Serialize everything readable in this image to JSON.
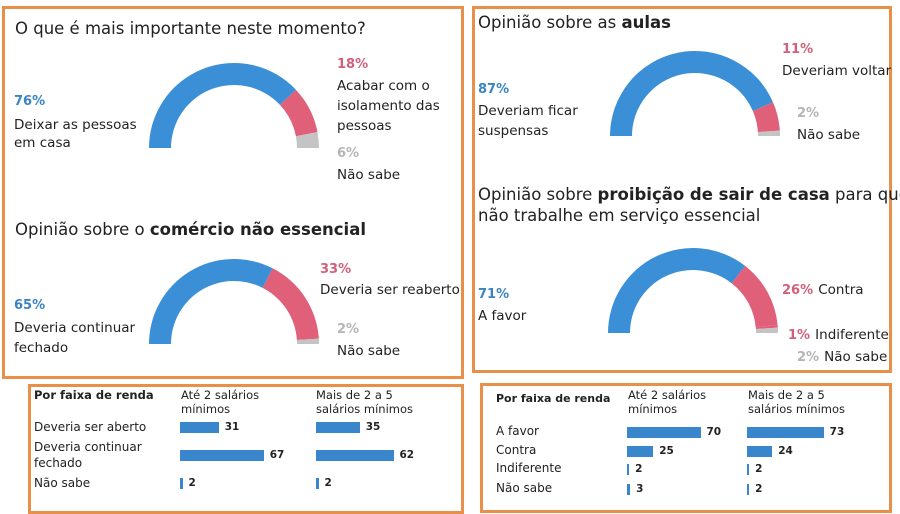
{
  "colors": {
    "blue": "#3a8fd6",
    "red": "#e0607a",
    "grey": "#c4c4c4",
    "blue_text": "#3a84c4",
    "red_text": "#d2607a",
    "grey_text": "#b5b5b5",
    "frame": "#e8904a",
    "bar": "#3a86cc"
  },
  "chart_data": [
    {
      "type": "pie",
      "style": "half-donut",
      "title": "O que é mais importante neste momento?",
      "categories": [
        "Deixar as pessoas em casa",
        "Acabar com o isolamento das pessoas",
        "Não sabe"
      ],
      "values": [
        76,
        18,
        6
      ],
      "labels": [
        {
          "pct": "76%",
          "lines": [
            "Deixar as pessoas",
            "em casa"
          ]
        },
        {
          "pct": "18%",
          "lines": [
            "Acabar com o",
            "isolamento das",
            "pessoas"
          ]
        },
        {
          "pct": "6%",
          "lines": [
            "Não sabe"
          ]
        }
      ]
    },
    {
      "type": "pie",
      "style": "half-donut",
      "title_plain": "Opinião sobre o ",
      "title_bold": "comércio não essencial",
      "categories": [
        "Deveria continuar fechado",
        "Deveria ser reaberto",
        "Não sabe"
      ],
      "values": [
        65,
        33,
        2
      ],
      "labels": [
        {
          "pct": "65%",
          "lines": [
            "Deveria continuar",
            "fechado"
          ]
        },
        {
          "pct": "33%",
          "lines": [
            "Deveria ser reaberto"
          ]
        },
        {
          "pct": "2%",
          "lines": [
            "Não sabe"
          ]
        }
      ]
    },
    {
      "type": "pie",
      "style": "half-donut",
      "title_plain": "Opinião sobre as ",
      "title_bold": "aulas",
      "categories": [
        "Deveriam ficar suspensas",
        "Deveriam voltar",
        "Não sabe"
      ],
      "values": [
        87,
        11,
        2
      ],
      "labels": [
        {
          "pct": "87%",
          "lines": [
            "Deveriam ficar",
            "suspensas"
          ]
        },
        {
          "pct": "11%",
          "lines": [
            "Deveriam voltar"
          ]
        },
        {
          "pct": "2%",
          "lines": [
            "Não sabe"
          ]
        }
      ]
    },
    {
      "type": "pie",
      "style": "half-donut",
      "title_plain": "Opinião sobre ",
      "title_bold": "proibição de sair de casa",
      "title_rest": " para quem",
      "title_line2": "não trabalhe em serviço essencial",
      "categories": [
        "A favor",
        "Contra",
        "Indiferente",
        "Não sabe"
      ],
      "values": [
        71,
        26,
        1,
        2
      ],
      "labels": [
        {
          "pct": "71%",
          "lines": [
            "A favor"
          ]
        },
        {
          "pct": "26%",
          "lines": [
            "Contra"
          ]
        },
        {
          "pct": "1%",
          "lines": [
            "Indiferente"
          ]
        },
        {
          "pct": "2%",
          "lines": [
            "Não sabe"
          ]
        }
      ]
    },
    {
      "type": "bar",
      "orientation": "horizontal",
      "header": "Por faixa de renda",
      "series_names": [
        "Até 2 salários mínimos",
        "Mais de 2 a 5 salários mínimos"
      ],
      "categories": [
        "Deveria ser aberto",
        "Deveria continuar fechado",
        "Não sabe"
      ],
      "series": [
        {
          "name": "Até 2 salários mínimos",
          "values": [
            31,
            67,
            2
          ]
        },
        {
          "name": "Mais de 2 a 5 salários mínimos",
          "values": [
            35,
            62,
            2
          ]
        }
      ]
    },
    {
      "type": "bar",
      "orientation": "horizontal",
      "header": "Por faixa de renda",
      "series_names": [
        "Até 2 salários mínimos",
        "Mais de 2 a 5 salários mínimos"
      ],
      "categories": [
        "A favor",
        "Contra",
        "Indiferente",
        "Não sabe"
      ],
      "series": [
        {
          "name": "Até 2 salários mínimos",
          "values": [
            70,
            25,
            2,
            3
          ]
        },
        {
          "name": "Mais de 2 a 5 salários mínimos",
          "values": [
            73,
            24,
            2,
            2
          ]
        }
      ]
    }
  ],
  "table_left": {
    "header": "Por faixa de renda",
    "col1": [
      "Até 2 salários",
      "mínimos"
    ],
    "col2": [
      "Mais de 2 a 5",
      "salários mínimos"
    ],
    "rows": [
      {
        "label": [
          "Deveria ser aberto"
        ],
        "v1": 31,
        "v2": 35
      },
      {
        "label": [
          "Deveria continuar",
          "fechado"
        ],
        "v1": 67,
        "v2": 62
      },
      {
        "label": [
          "Não sabe"
        ],
        "v1": 2,
        "v2": 2
      }
    ]
  },
  "table_right": {
    "header": "Por faixa de renda",
    "col1": [
      "Até 2 salários",
      "mínimos"
    ],
    "col2": [
      "Mais de 2 a 5",
      "salários mínimos"
    ],
    "rows": [
      {
        "label": [
          "A favor"
        ],
        "v1": 70,
        "v2": 73
      },
      {
        "label": [
          "Contra"
        ],
        "v1": 25,
        "v2": 24
      },
      {
        "label": [
          "Indiferente"
        ],
        "v1": 2,
        "v2": 2
      },
      {
        "label": [
          "Não sabe"
        ],
        "v1": 3,
        "v2": 2
      }
    ]
  }
}
